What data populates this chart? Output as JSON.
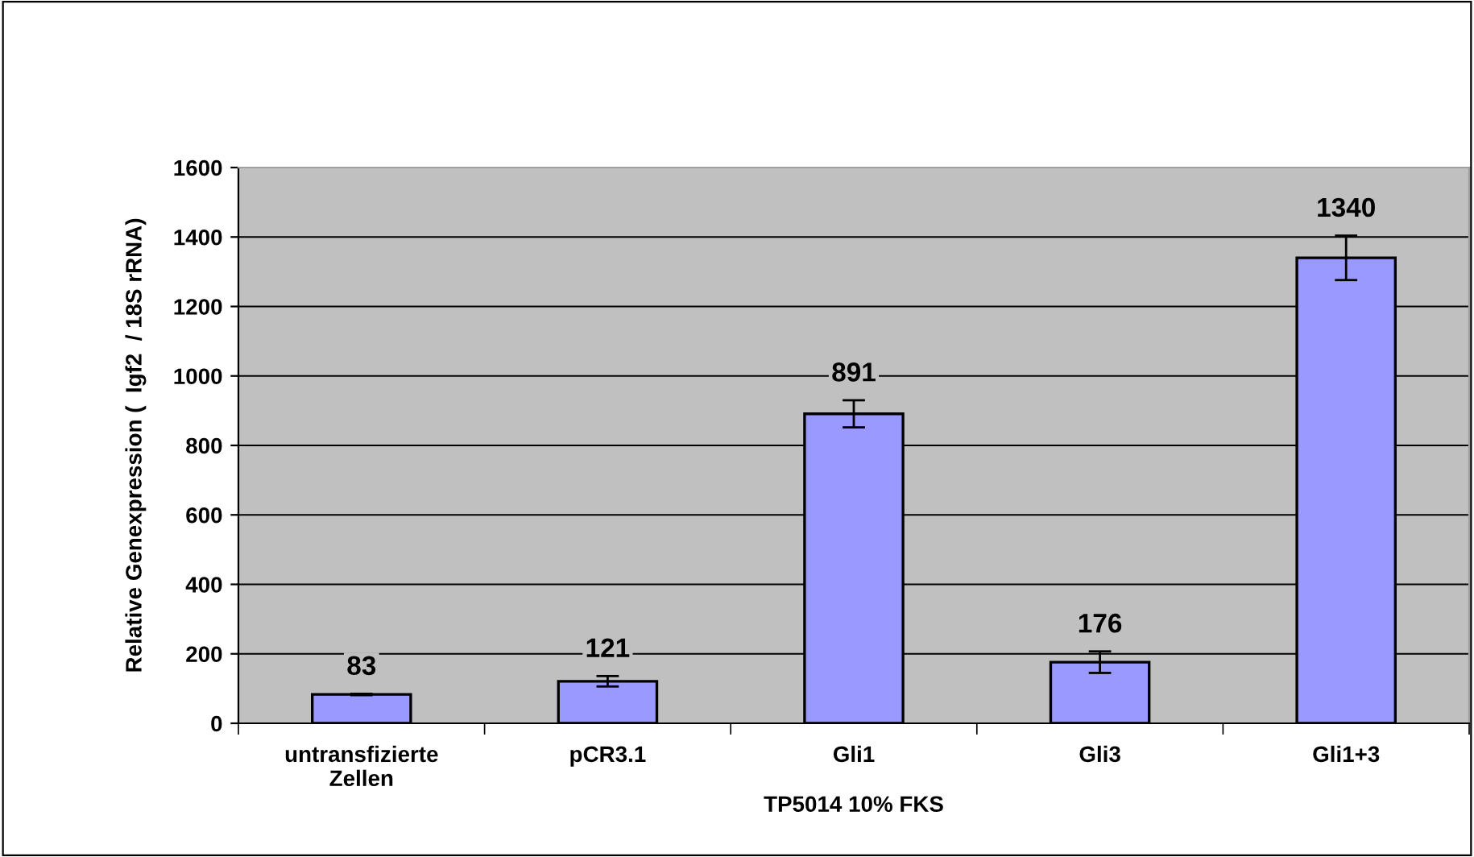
{
  "chart_data": {
    "type": "bar",
    "categories": [
      "untransfizierte\nZellen",
      "pCR3.1",
      "Gli1",
      "Gli3",
      "Gli1+3"
    ],
    "values": [
      83,
      121,
      891,
      176,
      1340
    ],
    "errors": [
      2,
      15,
      39,
      31,
      64
    ],
    "color": "#9999ff",
    "data_labels": true,
    "xlabel": "TP5014 10% FKS",
    "ylabel": "Relative Genexpression (  Igf2  / 18S rRNA)",
    "ylim": [
      0,
      1600
    ],
    "yticks": [
      0,
      200,
      400,
      600,
      800,
      1000,
      1200,
      1400,
      1600
    ],
    "grid": "y",
    "legend": false
  }
}
